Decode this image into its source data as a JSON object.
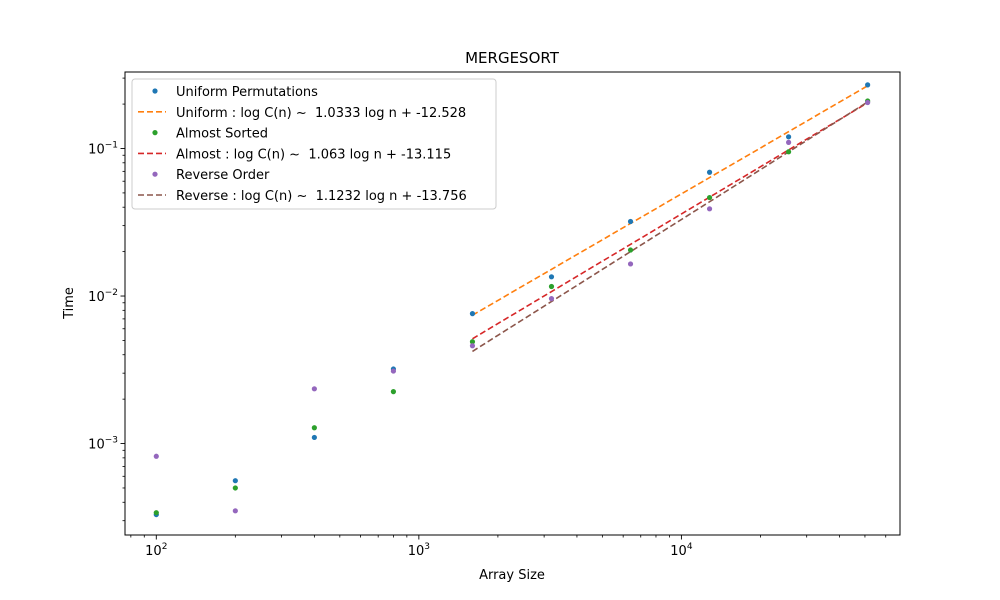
{
  "chart_data": {
    "type": "scatter",
    "title": "MERGESORT",
    "xlabel": "Array Size",
    "ylabel": "Time",
    "xscale": "log",
    "yscale": "log",
    "xlim": [
      76,
      68000
    ],
    "ylim": [
      0.00024,
      0.33
    ],
    "grid": false,
    "legend_position": "top-left",
    "x_ticks": [
      {
        "value": 100,
        "base": "10",
        "exp": "2"
      },
      {
        "value": 1000,
        "base": "10",
        "exp": "3"
      },
      {
        "value": 10000,
        "base": "10",
        "exp": "4"
      }
    ],
    "y_ticks": [
      {
        "value": 0.001,
        "base": "10",
        "exp": "−3"
      },
      {
        "value": 0.01,
        "base": "10",
        "exp": "−2"
      },
      {
        "value": 0.1,
        "base": "10",
        "exp": "−1"
      }
    ],
    "series": [
      {
        "name": "Uniform Permutations",
        "kind": "points",
        "color": "#1f77b4",
        "x": [
          100,
          200,
          400,
          800,
          1600,
          3200,
          6400,
          12800,
          25600,
          51200
        ],
        "y": [
          0.00033,
          0.00056,
          0.0011,
          0.0032,
          0.0076,
          0.0135,
          0.032,
          0.069,
          0.12,
          0.27
        ]
      },
      {
        "name": "Uniform : log C(n) ~  1.0333 log n + -12.528",
        "kind": "fit",
        "color": "#ff7f0e",
        "slope": 1.0333,
        "intercept": -12.528,
        "x_range": [
          1600,
          51200
        ]
      },
      {
        "name": "Almost Sorted",
        "kind": "points",
        "color": "#2ca02c",
        "x": [
          100,
          200,
          400,
          800,
          1600,
          3200,
          6400,
          12800,
          25600,
          51200
        ],
        "y": [
          0.00034,
          0.0005,
          0.00128,
          0.00225,
          0.0049,
          0.0116,
          0.0205,
          0.0465,
          0.095,
          0.21
        ]
      },
      {
        "name": "Almost : log C(n) ~  1.063 log n + -13.115",
        "kind": "fit",
        "color": "#d62728",
        "slope": 1.063,
        "intercept": -13.115,
        "x_range": [
          1600,
          51200
        ]
      },
      {
        "name": "Reverse Order",
        "kind": "points",
        "color": "#9467bd",
        "x": [
          100,
          200,
          400,
          800,
          1600,
          3200,
          6400,
          12800,
          25600,
          51200
        ],
        "y": [
          0.00082,
          0.00035,
          0.00235,
          0.0031,
          0.0046,
          0.0096,
          0.0165,
          0.039,
          0.11,
          0.205
        ]
      },
      {
        "name": "Reverse : log C(n) ~  1.1232 log n + -13.756",
        "kind": "fit",
        "color": "#8c564b",
        "slope": 1.1232,
        "intercept": -13.756,
        "x_range": [
          1600,
          51200
        ]
      }
    ]
  }
}
